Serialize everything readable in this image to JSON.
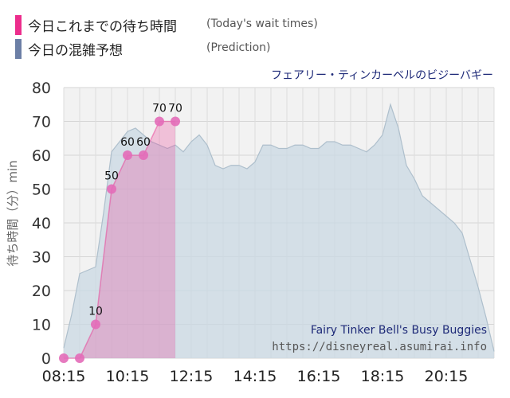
{
  "legend": {
    "today_label": "今日これまでの待ち時間",
    "today_note": "(Today's wait times)",
    "today_color": "#ec2d8c",
    "prediction_label": "今日の混雑予想",
    "prediction_note": "(Prediction)",
    "prediction_color": "#6c7fa6"
  },
  "chart_title": "フェアリー・ティンカーベルのビジーバギー",
  "attribution": {
    "name": "Fairy Tinker Bell's Busy Buggies",
    "url": "https://disneyreal.asumirai.info"
  },
  "chart_data": {
    "type": "area",
    "ylabel": "待ち時間（分）min",
    "ylim": [
      0,
      80
    ],
    "yticks": [
      0,
      10,
      20,
      30,
      40,
      50,
      60,
      70,
      80
    ],
    "xlim": [
      "08:15",
      "21:45"
    ],
    "xticks": [
      "08:15",
      "10:15",
      "12:15",
      "14:15",
      "16:15",
      "18:15",
      "20:15"
    ],
    "grid": true,
    "series": [
      {
        "name": "今日の混雑予想",
        "color": "#c9d8e3",
        "x": [
          "08:15",
          "08:30",
          "08:45",
          "09:00",
          "09:15",
          "09:30",
          "09:45",
          "10:00",
          "10:15",
          "10:30",
          "10:45",
          "11:00",
          "11:15",
          "11:30",
          "11:45",
          "12:00",
          "12:15",
          "12:30",
          "12:45",
          "13:00",
          "13:15",
          "13:30",
          "13:45",
          "14:00",
          "14:15",
          "14:30",
          "14:45",
          "15:00",
          "15:15",
          "15:30",
          "15:45",
          "16:00",
          "16:15",
          "16:30",
          "16:45",
          "17:00",
          "17:15",
          "17:30",
          "17:45",
          "18:00",
          "18:15",
          "18:30",
          "18:45",
          "19:00",
          "19:15",
          "19:30",
          "19:45",
          "20:00",
          "20:15",
          "20:30",
          "20:45",
          "21:00",
          "21:15",
          "21:30",
          "21:45"
        ],
        "values": [
          3,
          13,
          25,
          26,
          27,
          43,
          61,
          64,
          67,
          68,
          66,
          64,
          63,
          62,
          63,
          61,
          64,
          66,
          63,
          57,
          56,
          57,
          57,
          56,
          58,
          63,
          63,
          62,
          62,
          63,
          63,
          62,
          62,
          64,
          64,
          63,
          63,
          62,
          61,
          63,
          66,
          75,
          68,
          57,
          53,
          48,
          46,
          44,
          42,
          40,
          37,
          29,
          21,
          12,
          2
        ]
      },
      {
        "name": "今日これまでの待ち時間",
        "color": "#ec2d8c",
        "x": [
          "08:15",
          "08:45",
          "09:15",
          "09:45",
          "10:15",
          "10:45",
          "11:15",
          "11:45"
        ],
        "values": [
          0,
          0,
          10,
          50,
          60,
          60,
          70,
          70
        ],
        "labels": [
          "",
          "",
          "10",
          "50",
          "60",
          "60",
          "70",
          "70"
        ]
      }
    ]
  }
}
